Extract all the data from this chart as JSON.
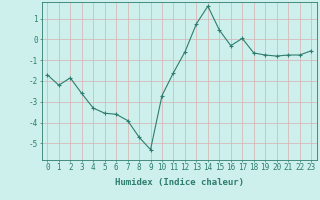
{
  "x": [
    0,
    1,
    2,
    3,
    4,
    5,
    6,
    7,
    8,
    9,
    10,
    11,
    12,
    13,
    14,
    15,
    16,
    17,
    18,
    19,
    20,
    21,
    22,
    23
  ],
  "y": [
    -1.7,
    -2.2,
    -1.85,
    -2.6,
    -3.3,
    -3.55,
    -3.6,
    -3.9,
    -4.7,
    -5.3,
    -2.7,
    -1.6,
    -0.6,
    0.75,
    1.6,
    0.45,
    -0.3,
    0.05,
    -0.65,
    -0.75,
    -0.8,
    -0.75,
    -0.75,
    -0.55
  ],
  "line_color": "#2e7d6e",
  "marker": "+",
  "markersize": 3,
  "linewidth": 0.8,
  "bg_color": "#cdf0ec",
  "grid_color": "#b0d8d4",
  "xlabel": "Humidex (Indice chaleur)",
  "ylim": [
    -5.8,
    1.8
  ],
  "xlim": [
    -0.5,
    23.5
  ],
  "yticks": [
    -5,
    -4,
    -3,
    -2,
    -1,
    0,
    1
  ],
  "xticks": [
    0,
    1,
    2,
    3,
    4,
    5,
    6,
    7,
    8,
    9,
    10,
    11,
    12,
    13,
    14,
    15,
    16,
    17,
    18,
    19,
    20,
    21,
    22,
    23
  ],
  "xlabel_fontsize": 6.5,
  "tick_fontsize": 5.5
}
